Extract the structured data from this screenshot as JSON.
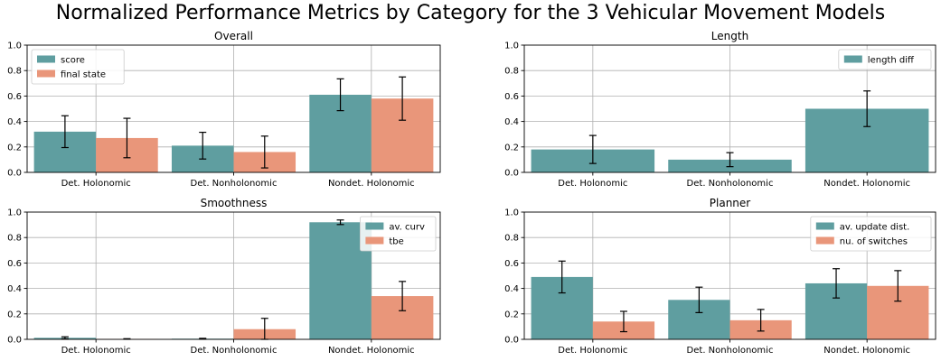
{
  "figure": {
    "title": "Normalized Performance Metrics by Category for the 3 Vehicular Movement Models"
  },
  "colors": {
    "teal": "#5f9ea0",
    "salmon": "#e9967a",
    "grid": "#b0b0b0"
  },
  "chart_data": [
    {
      "type": "bar",
      "title": "Overall",
      "categories": [
        "Det. Holonomic",
        "Det. Nonholonomic",
        "Nondet. Holonomic"
      ],
      "ylim": [
        0,
        1.0
      ],
      "yticks": [
        "0.0",
        "0.2",
        "0.4",
        "0.6",
        "0.8",
        "1.0"
      ],
      "grid": true,
      "legend": "upper-left",
      "series": [
        {
          "name": "score",
          "color": "#5f9ea0",
          "values": [
            0.32,
            0.21,
            0.61
          ],
          "errors": [
            0.125,
            0.105,
            0.125
          ]
        },
        {
          "name": "final state",
          "color": "#e9967a",
          "values": [
            0.27,
            0.16,
            0.58
          ],
          "errors": [
            0.155,
            0.125,
            0.17
          ]
        }
      ]
    },
    {
      "type": "bar",
      "title": "Length",
      "categories": [
        "Det. Holonomic",
        "Det. Nonholonomic",
        "Nondet. Holonomic"
      ],
      "ylim": [
        0,
        1.0
      ],
      "yticks": [
        "0.0",
        "0.2",
        "0.4",
        "0.6",
        "0.8",
        "1.0"
      ],
      "grid": true,
      "legend": "upper-right",
      "series": [
        {
          "name": "length diff",
          "color": "#5f9ea0",
          "values": [
            0.18,
            0.1,
            0.5
          ],
          "errors": [
            0.11,
            0.055,
            0.14
          ]
        }
      ]
    },
    {
      "type": "bar",
      "title": "Smoothness",
      "categories": [
        "Det. Holonomic",
        "Det. Nonholonomic",
        "Nondet. Holonomic"
      ],
      "ylim": [
        0,
        1.0
      ],
      "yticks": [
        "0.0",
        "0.2",
        "0.4",
        "0.6",
        "0.8",
        "1.0"
      ],
      "grid": true,
      "legend": "upper-right",
      "series": [
        {
          "name": "av. curv",
          "color": "#5f9ea0",
          "values": [
            0.012,
            0.005,
            0.92
          ],
          "errors": [
            0.008,
            0.003,
            0.018
          ]
        },
        {
          "name": "tbe",
          "color": "#e9967a",
          "values": [
            0.003,
            0.08,
            0.34
          ],
          "errors": [
            0.002,
            0.085,
            0.115
          ]
        }
      ]
    },
    {
      "type": "bar",
      "title": "Planner",
      "categories": [
        "Det. Holonomic",
        "Det. Nonholonomic",
        "Nondet. Holonomic"
      ],
      "ylim": [
        0,
        1.0
      ],
      "yticks": [
        "0.0",
        "0.2",
        "0.4",
        "0.6",
        "0.8",
        "1.0"
      ],
      "grid": true,
      "legend": "upper-right",
      "series": [
        {
          "name": "av. update dist.",
          "color": "#5f9ea0",
          "values": [
            0.49,
            0.31,
            0.44
          ],
          "errors": [
            0.125,
            0.1,
            0.115
          ]
        },
        {
          "name": "nu. of switches",
          "color": "#e9967a",
          "values": [
            0.14,
            0.15,
            0.42
          ],
          "errors": [
            0.08,
            0.085,
            0.12
          ]
        }
      ]
    }
  ]
}
